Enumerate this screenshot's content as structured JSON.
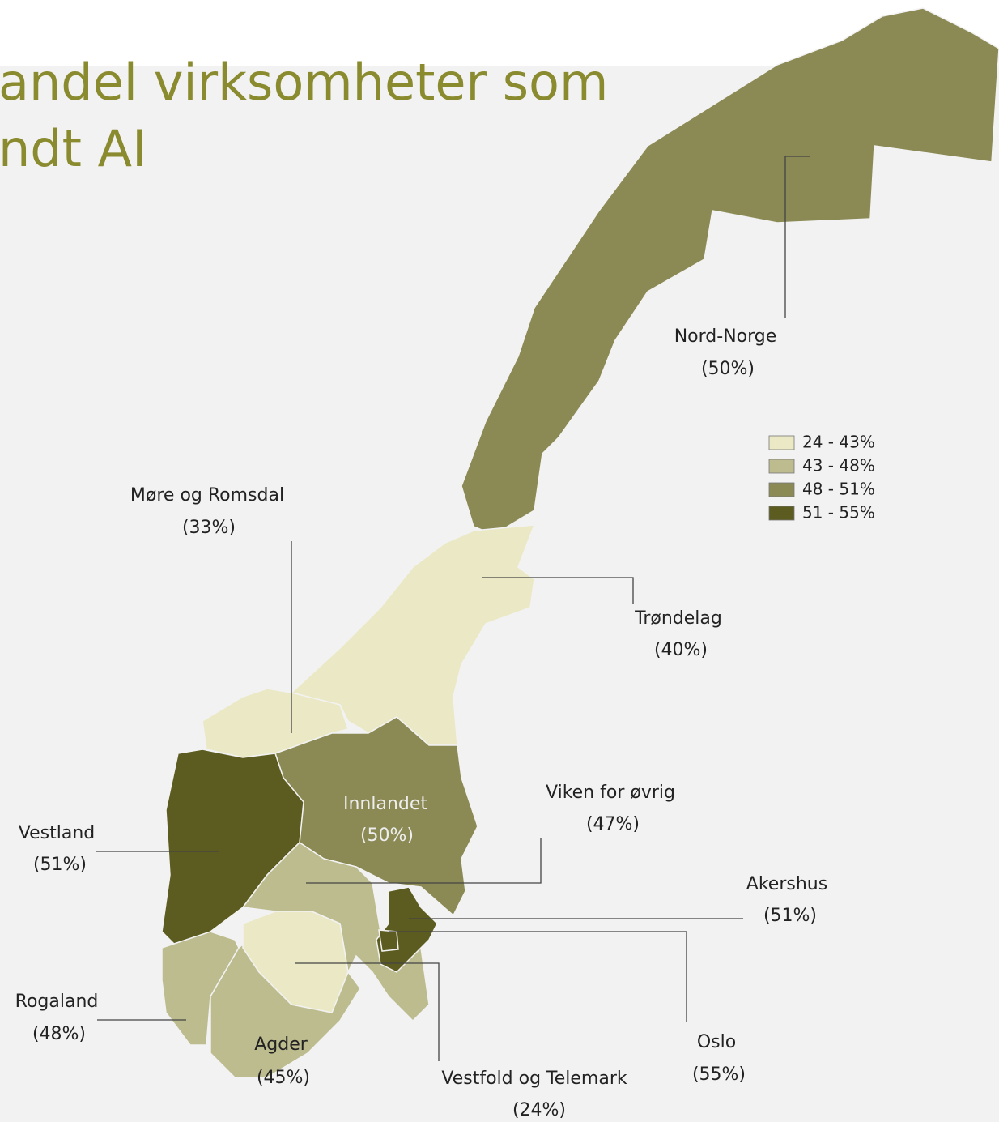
{
  "title": {
    "line1": "andel virksomheter som",
    "line2": "ndt AI"
  },
  "legend": [
    {
      "label": "24 - 43%",
      "color": "#ebe9c5"
    },
    {
      "label": "43 - 48%",
      "color": "#bdbc8f"
    },
    {
      "label": "48 - 51%",
      "color": "#8b8a55"
    },
    {
      "label": "51 - 55%",
      "color": "#5c5c20"
    }
  ],
  "regions": [
    {
      "name": "Nord-Norge",
      "value": 50,
      "value_label": "(50%)",
      "color": "#8b8a55"
    },
    {
      "name": "Møre og Romsdal",
      "value": 33,
      "value_label": "(33%)",
      "color": "#ebe9c5"
    },
    {
      "name": "Trøndelag",
      "value": 40,
      "value_label": "(40%)",
      "color": "#ebe9c5"
    },
    {
      "name": "Innlandet",
      "value": 50,
      "value_label": "(50%)",
      "color": "#8b8a55"
    },
    {
      "name": "Viken for øvrig",
      "value": 47,
      "value_label": "(47%)",
      "color": "#bdbc8f"
    },
    {
      "name": "Vestland",
      "value": 51,
      "value_label": "(51%)",
      "color": "#5c5c20"
    },
    {
      "name": "Akershus",
      "value": 51,
      "value_label": "(51%)",
      "color": "#5c5c20"
    },
    {
      "name": "Rogaland",
      "value": 48,
      "value_label": "(48%)",
      "color": "#bdbc8f"
    },
    {
      "name": "Agder",
      "value": 45,
      "value_label": "(45%)",
      "color": "#bdbc8f"
    },
    {
      "name": "Vestfold og Telemark",
      "value": 24,
      "value_label": "(24%)",
      "color": "#ebe9c5"
    },
    {
      "name": "Oslo",
      "value": 55,
      "value_label": "(55%)",
      "color": "#5c5c20"
    }
  ]
}
